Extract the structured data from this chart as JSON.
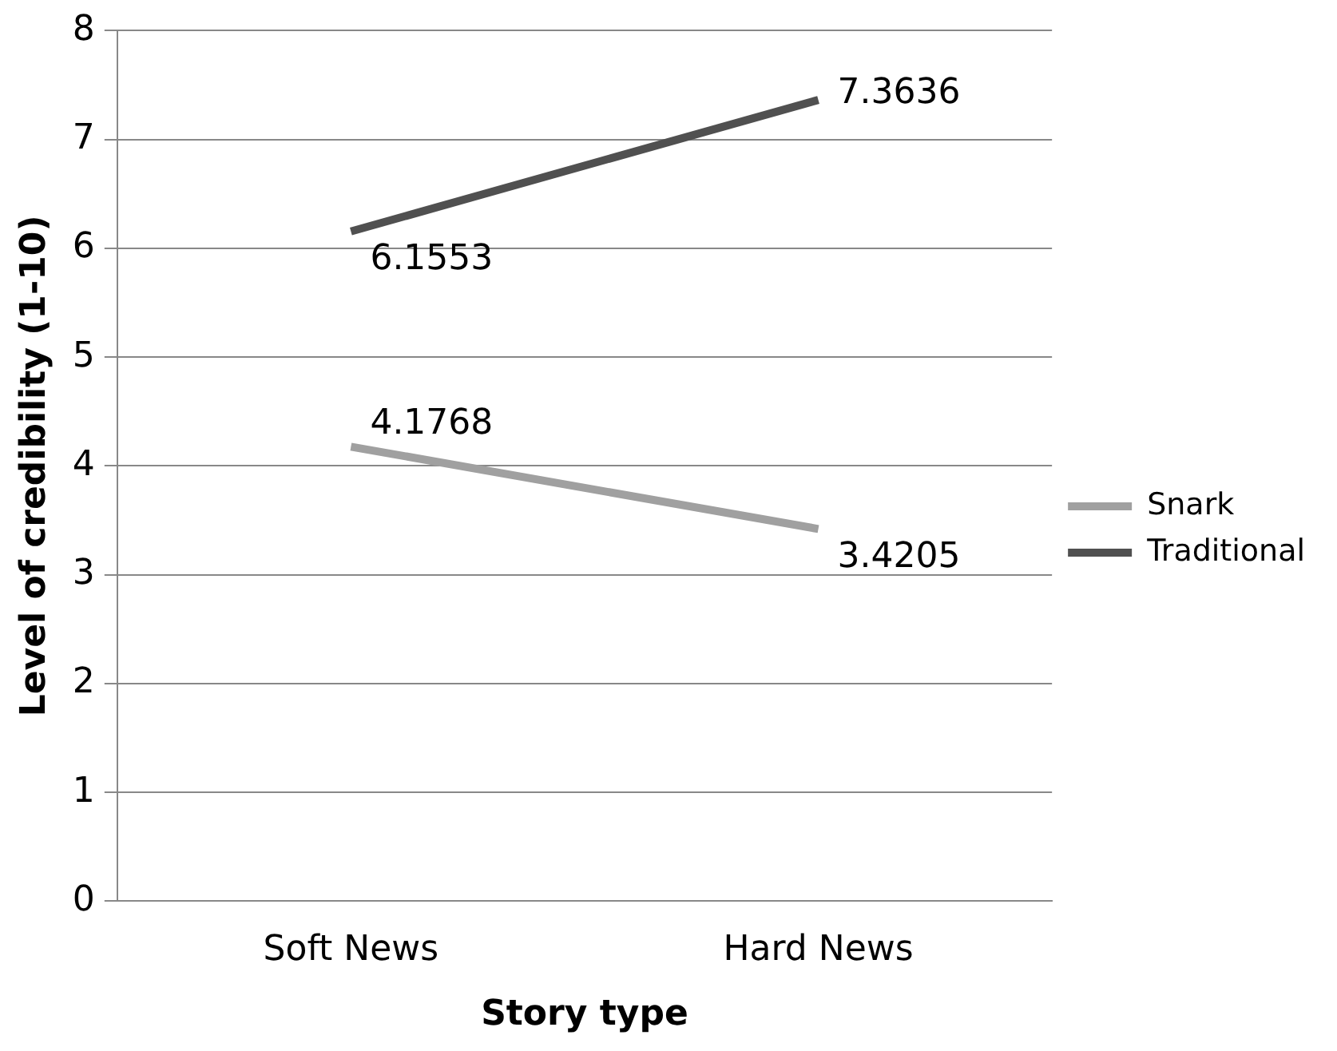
{
  "chart_data": {
    "type": "line",
    "xlabel": "Story type",
    "ylabel": "Level of credibility (1-10)",
    "categories": [
      "Soft News",
      "Hard News"
    ],
    "series": [
      {
        "name": "Snark",
        "color": "#a0a0a0",
        "values": [
          4.1768,
          3.4205
        ]
      },
      {
        "name": "Traditional",
        "color": "#505050",
        "values": [
          6.1553,
          7.3636
        ]
      }
    ],
    "ylim": [
      0,
      8
    ],
    "yticks": [
      0,
      1,
      2,
      3,
      4,
      5,
      6,
      7,
      8
    ],
    "grid": "y",
    "legend": "right",
    "marker": "none",
    "line_style": "solid",
    "data_labels": true
  }
}
